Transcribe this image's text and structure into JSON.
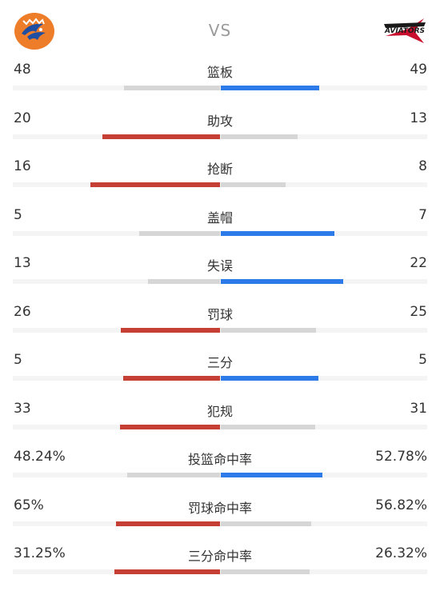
{
  "header": {
    "vs_label": "VS",
    "home_logo_icon": "home-team-logo",
    "away_logo_icon": "aviators-logo",
    "away_logo_text": "AVIATORS"
  },
  "colors": {
    "leader": "#c63f35",
    "away_leader": "#2d7be8",
    "trailing": "#d6d6d6"
  },
  "stats": [
    {
      "label": "篮板",
      "home": "48",
      "away": "49",
      "home_value": 48,
      "away_value": 49,
      "leader": "away"
    },
    {
      "label": "助攻",
      "home": "20",
      "away": "13",
      "home_value": 20,
      "away_value": 13,
      "leader": "home"
    },
    {
      "label": "抢断",
      "home": "16",
      "away": "8",
      "home_value": 16,
      "away_value": 8,
      "leader": "home"
    },
    {
      "label": "盖帽",
      "home": "5",
      "away": "7",
      "home_value": 5,
      "away_value": 7,
      "leader": "away"
    },
    {
      "label": "失误",
      "home": "13",
      "away": "22",
      "home_value": 13,
      "away_value": 22,
      "leader": "away"
    },
    {
      "label": "罚球",
      "home": "26",
      "away": "25",
      "home_value": 26,
      "away_value": 25,
      "leader": "home"
    },
    {
      "label": "三分",
      "home": "5",
      "away": "5",
      "home_value": 5,
      "away_value": 5,
      "leader": "both"
    },
    {
      "label": "犯规",
      "home": "33",
      "away": "31",
      "home_value": 33,
      "away_value": 31,
      "leader": "home"
    },
    {
      "label": "投篮命中率",
      "home": "48.24%",
      "away": "52.78%",
      "home_value": 48.24,
      "away_value": 52.78,
      "leader": "away"
    },
    {
      "label": "罚球命中率",
      "home": "65%",
      "away": "56.82%",
      "home_value": 65,
      "away_value": 56.82,
      "leader": "home"
    },
    {
      "label": "三分命中率",
      "home": "31.25%",
      "away": "26.32%",
      "home_value": 31.25,
      "away_value": 26.32,
      "leader": "home"
    }
  ]
}
